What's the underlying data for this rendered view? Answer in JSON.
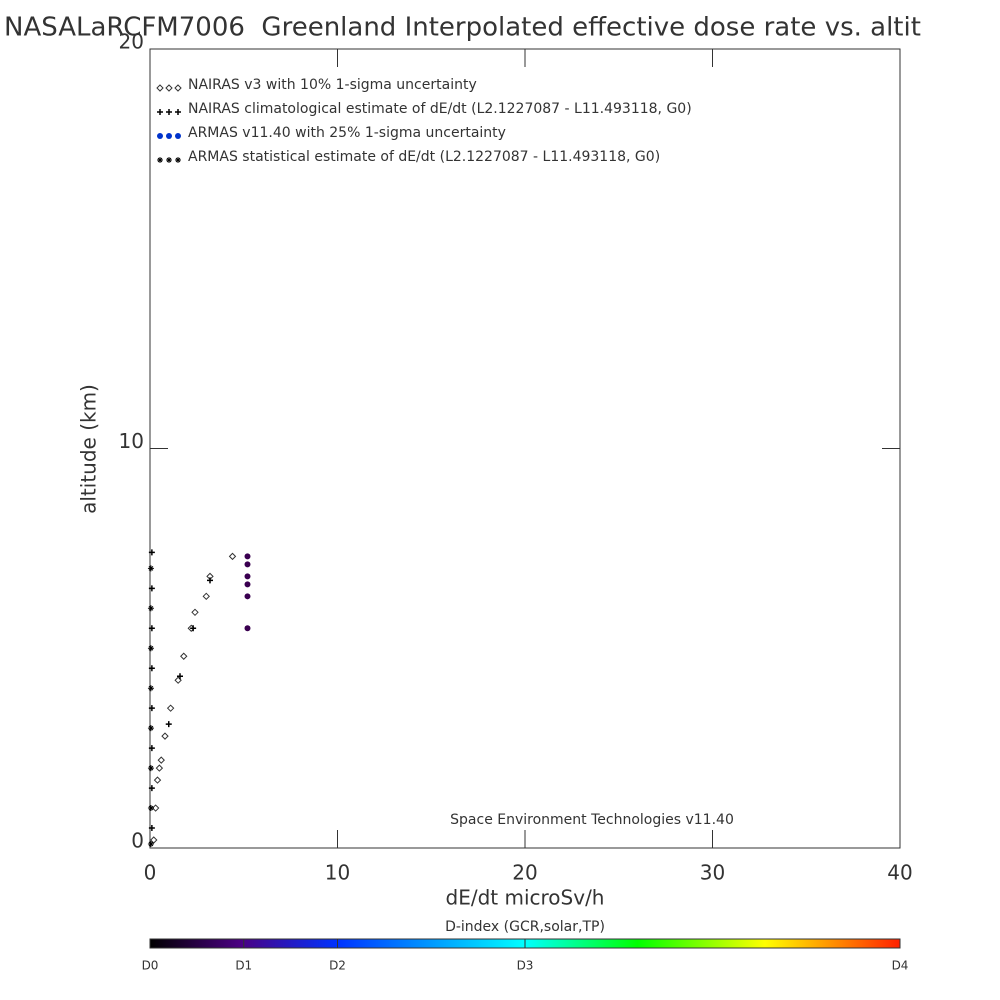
{
  "chart_data": {
    "type": "scatter",
    "title": "NASALaRCFM7006  Greenland Interpolated effective dose rate vs. altit",
    "x_label": "dE/dt microSv/h",
    "y_label": "altitude (km)",
    "annotation": "Space Environment Technologies v11.40",
    "xlim": [
      0,
      40
    ],
    "ylim": [
      0,
      20
    ],
    "xticks": [
      0,
      10,
      20,
      30,
      40
    ],
    "yticks": [
      0,
      10,
      20
    ],
    "series": [
      {
        "name": "NAIRAS v3 with 10% 1-sigma uncertainty",
        "color": "#333333",
        "marker": "diamond",
        "x": [
          0.2,
          0.3,
          0.4,
          0.5,
          0.6,
          0.8,
          1.1,
          1.5,
          1.8,
          2.2,
          2.4,
          3.0,
          3.2,
          4.4
        ],
        "values": [
          0.2,
          1.0,
          1.7,
          2.0,
          2.2,
          2.8,
          3.5,
          4.2,
          4.8,
          5.5,
          5.9,
          6.3,
          6.8,
          7.3
        ]
      },
      {
        "name": "NAIRAS climatological estimate of dE/dt (L2.1227087 - L11.493118, G0)",
        "color": "#000000",
        "marker": "plus",
        "x": [
          0.1,
          0.1,
          0.1,
          0.1,
          0.1,
          0.1,
          0.1,
          0.1,
          1.0,
          1.6,
          2.3,
          3.2
        ],
        "values": [
          0.5,
          1.5,
          2.5,
          3.5,
          4.5,
          5.5,
          6.5,
          7.4,
          3.1,
          4.3,
          5.5,
          6.7
        ]
      },
      {
        "name": "ARMAS v11.40 with 25% 1-sigma uncertainty",
        "color": "#3a0050",
        "marker": "circle",
        "x": [
          5.2,
          5.2,
          5.2,
          5.2,
          5.2,
          5.2
        ],
        "values": [
          7.3,
          7.1,
          6.8,
          6.6,
          6.3,
          5.5
        ]
      },
      {
        "name": "ARMAS statistical estimate of dE/dt (L2.1227087 - L11.493118, G0)",
        "color": "#000000",
        "marker": "asterisk",
        "x": [
          0.05,
          0.05,
          0.05,
          0.05,
          0.05,
          0.05,
          0.05,
          0.05
        ],
        "values": [
          0.1,
          1.0,
          2.0,
          3.0,
          4.0,
          5.0,
          6.0,
          7.0
        ]
      }
    ],
    "legend_marker_color": "#0033cc",
    "colorbar": {
      "label": "D-index (GCR,solar,TP)",
      "ticks": [
        {
          "value": 0,
          "label": "D0"
        },
        {
          "value": 5,
          "label": "D1"
        },
        {
          "value": 10,
          "label": "D2"
        },
        {
          "value": 20,
          "label": "D3"
        },
        {
          "value": 40,
          "label": "D4"
        }
      ]
    }
  }
}
